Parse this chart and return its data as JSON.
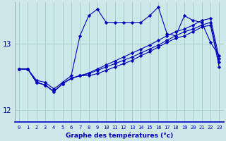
{
  "xlabel": "Graphe des températures (°c)",
  "background_color": "#cce8e8",
  "grid_color": "#aacccc",
  "line_color": "#0000bb",
  "x_ticks": [
    0,
    1,
    2,
    3,
    4,
    5,
    6,
    7,
    8,
    9,
    10,
    11,
    12,
    13,
    14,
    15,
    16,
    17,
    18,
    19,
    20,
    21,
    22,
    23
  ],
  "ylim": [
    11.82,
    13.62
  ],
  "y_ticks": [
    12,
    13
  ],
  "series": [
    [
      12.62,
      12.62,
      12.45,
      12.42,
      12.32,
      12.42,
      12.52,
      13.12,
      13.42,
      13.52,
      13.32,
      13.32,
      13.32,
      13.32,
      13.32,
      13.42,
      13.55,
      13.15,
      13.12,
      13.42,
      13.35,
      13.32,
      13.02,
      12.82
    ],
    [
      12.62,
      12.62,
      12.42,
      12.38,
      12.28,
      12.4,
      12.48,
      12.52,
      12.52,
      12.55,
      12.6,
      12.65,
      12.7,
      12.75,
      12.82,
      12.88,
      12.95,
      13.02,
      13.08,
      13.12,
      13.18,
      13.25,
      13.28,
      12.65
    ],
    [
      12.62,
      12.62,
      12.42,
      12.38,
      12.28,
      12.4,
      12.48,
      12.52,
      12.55,
      12.6,
      12.65,
      12.7,
      12.75,
      12.8,
      12.86,
      12.92,
      12.98,
      13.05,
      13.12,
      13.18,
      13.22,
      13.28,
      13.32,
      12.72
    ],
    [
      12.62,
      12.62,
      12.42,
      12.38,
      12.28,
      12.4,
      12.48,
      12.52,
      12.56,
      12.62,
      12.68,
      12.74,
      12.8,
      12.86,
      12.92,
      12.98,
      13.05,
      13.12,
      13.18,
      13.22,
      13.28,
      13.35,
      13.38,
      12.78
    ]
  ]
}
